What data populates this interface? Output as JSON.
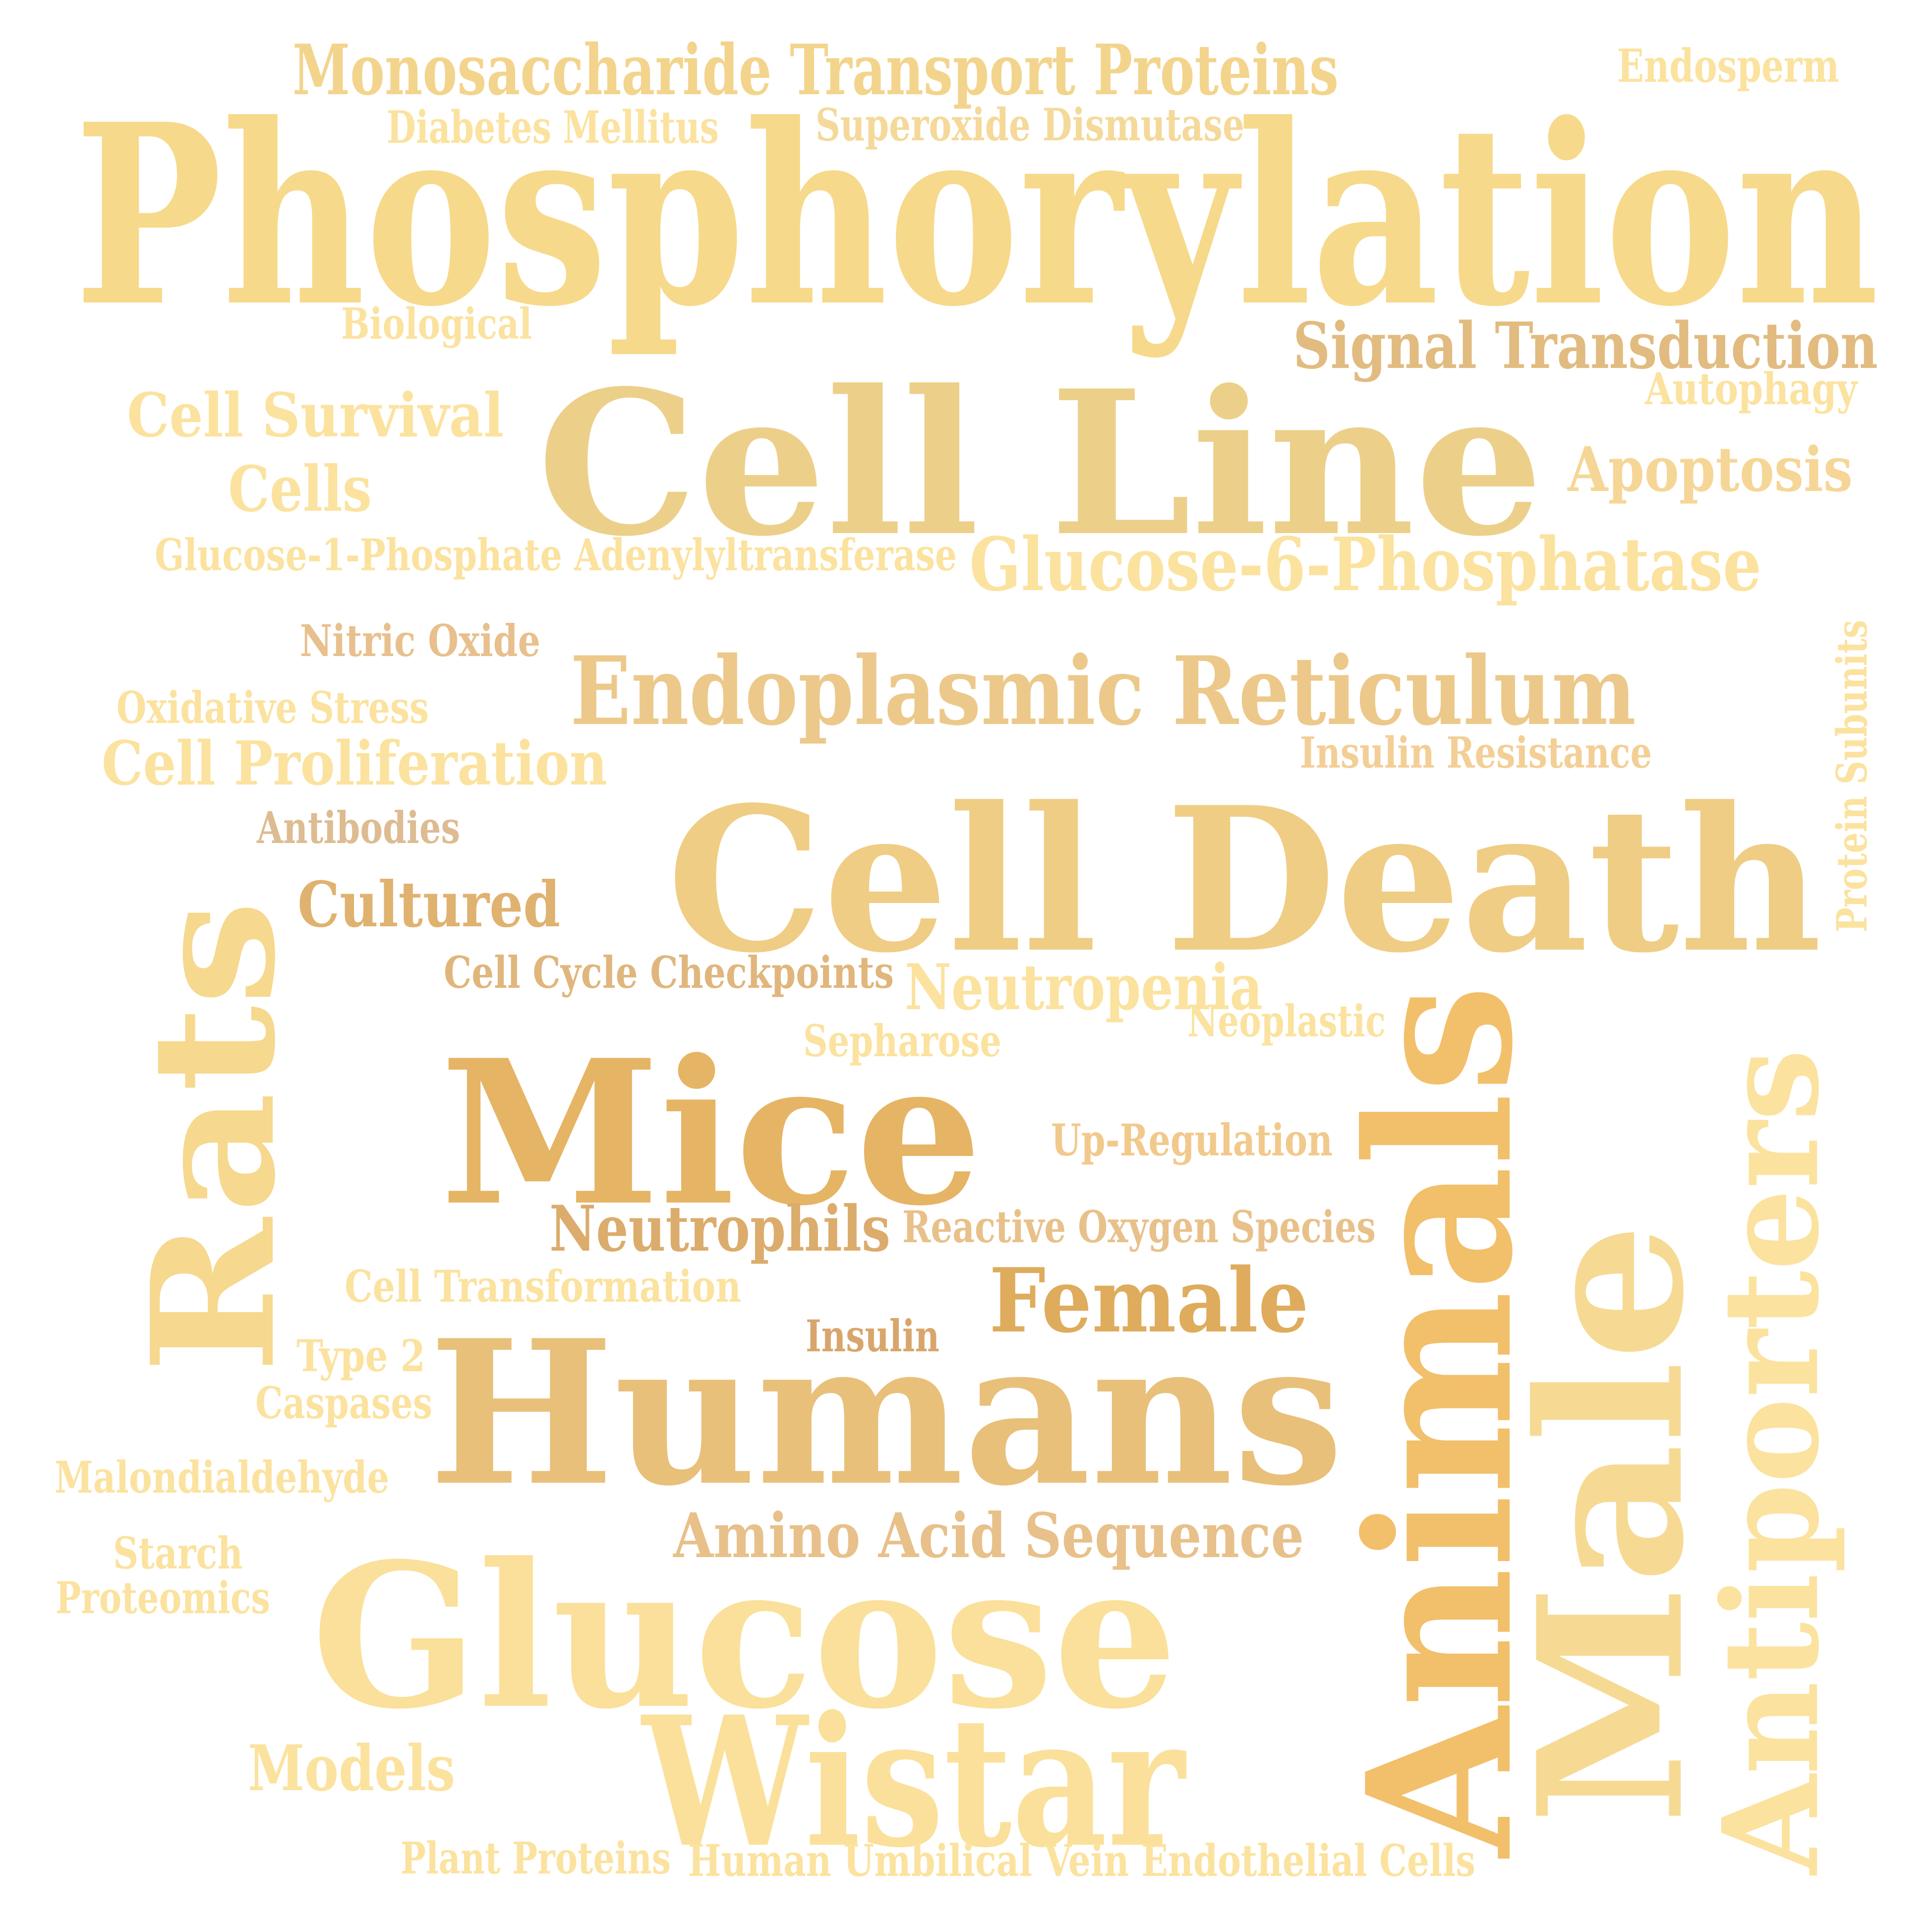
{
  "word_cloud": {
    "words": [
      {
        "id": "monosaccharide-transport-proteins",
        "text": "Monosaccharide Transport Proteins",
        "color": "#f3d48c",
        "orientation": "horizontal"
      },
      {
        "id": "endosperm",
        "text": "Endosperm",
        "color": "#fbe29e",
        "orientation": "horizontal"
      },
      {
        "id": "diabetes-mellitus",
        "text": "Diabetes Mellitus",
        "color": "#fbe29e",
        "orientation": "horizontal"
      },
      {
        "id": "superoxide-dismutase",
        "text": "Superoxide Dismutase",
        "color": "#f5d99a",
        "orientation": "horizontal"
      },
      {
        "id": "phosphorylation",
        "text": "Phosphorylation",
        "color": "#f7d98b",
        "orientation": "horizontal"
      },
      {
        "id": "biological",
        "text": "Biological",
        "color": "#fbe29e",
        "orientation": "horizontal"
      },
      {
        "id": "signal-transduction",
        "text": "Signal Transduction",
        "color": "#e2bb80",
        "orientation": "horizontal"
      },
      {
        "id": "cell-line",
        "text": "Cell Line",
        "color": "#ecd08a",
        "orientation": "horizontal"
      },
      {
        "id": "cell-survival",
        "text": "Cell Survival",
        "color": "#fbe29e",
        "orientation": "horizontal"
      },
      {
        "id": "autophagy",
        "text": "Autophagy",
        "color": "#fbe29e",
        "orientation": "horizontal"
      },
      {
        "id": "apoptosis",
        "text": "Apoptosis",
        "color": "#f6d696",
        "orientation": "horizontal"
      },
      {
        "id": "cells",
        "text": "Cells",
        "color": "#fbe29e",
        "orientation": "horizontal"
      },
      {
        "id": "glucose-1-phosphate-adenylyltransferase",
        "text": "Glucose-1-Phosphate Adenylyltransferase",
        "color": "#fbe29e",
        "orientation": "horizontal"
      },
      {
        "id": "glucose-6-phosphatase",
        "text": "Glucose-6-Phosphatase",
        "color": "#fbe29e",
        "orientation": "horizontal"
      },
      {
        "id": "nitric-oxide",
        "text": "Nitric Oxide",
        "color": "#e8c08e",
        "orientation": "horizontal"
      },
      {
        "id": "endoplasmic-reticulum",
        "text": "Endoplasmic Reticulum",
        "color": "#ecc98a",
        "orientation": "horizontal"
      },
      {
        "id": "oxidative-stress",
        "text": "Oxidative Stress",
        "color": "#fbe29e",
        "orientation": "horizontal"
      },
      {
        "id": "protein-subunits",
        "text": "Protein Subunits",
        "color": "#fbe29e",
        "orientation": "vertical"
      },
      {
        "id": "insulin-resistance",
        "text": "Insulin Resistance",
        "color": "#f3cf96",
        "orientation": "horizontal"
      },
      {
        "id": "cell-proliferation",
        "text": "Cell Proliferation",
        "color": "#fbe29e",
        "orientation": "horizontal"
      },
      {
        "id": "cell-death",
        "text": "Cell Death",
        "color": "#efcd84",
        "orientation": "horizontal"
      },
      {
        "id": "antibodies",
        "text": "Antibodies",
        "color": "#ddbc92",
        "orientation": "horizontal"
      },
      {
        "id": "rats",
        "text": "Rats",
        "color": "#f6d88e",
        "orientation": "vertical"
      },
      {
        "id": "cultured",
        "text": "Cultured",
        "color": "#e0b270",
        "orientation": "horizontal"
      },
      {
        "id": "cell-cycle-checkpoints",
        "text": "Cell Cycle Checkpoints",
        "color": "#e0b67c",
        "orientation": "horizontal"
      },
      {
        "id": "neutropenia",
        "text": "Neutropenia",
        "color": "#fbe29e",
        "orientation": "horizontal"
      },
      {
        "id": "neoplastic",
        "text": "Neoplastic",
        "color": "#fbe29e",
        "orientation": "horizontal"
      },
      {
        "id": "sepharose",
        "text": "Sepharose",
        "color": "#fbe29e",
        "orientation": "horizontal"
      },
      {
        "id": "mice",
        "text": "Mice",
        "color": "#e5b465",
        "orientation": "horizontal"
      },
      {
        "id": "up-regulation",
        "text": "Up-Regulation",
        "color": "#f2c98c",
        "orientation": "horizontal"
      },
      {
        "id": "animals",
        "text": "Animals",
        "color": "#f2bf6a",
        "orientation": "vertical"
      },
      {
        "id": "antiporters",
        "text": "Antiporters",
        "color": "#fbe29e",
        "orientation": "vertical"
      },
      {
        "id": "neutrophils",
        "text": "Neutrophils",
        "color": "#dcac6c",
        "orientation": "horizontal"
      },
      {
        "id": "reactive-oxygen-species",
        "text": "Reactive Oxygen Species",
        "color": "#e8c18a",
        "orientation": "horizontal"
      },
      {
        "id": "male",
        "text": "Male",
        "color": "#f6da94",
        "orientation": "vertical"
      },
      {
        "id": "cell-transformation",
        "text": "Cell Transformation",
        "color": "#fbe29e",
        "orientation": "horizontal"
      },
      {
        "id": "female",
        "text": "Female",
        "color": "#deac5c",
        "orientation": "horizontal"
      },
      {
        "id": "insulin",
        "text": "Insulin",
        "color": "#d8a66c",
        "orientation": "horizontal"
      },
      {
        "id": "type-2",
        "text": "Type 2",
        "color": "#fbe29e",
        "orientation": "horizontal"
      },
      {
        "id": "humans",
        "text": "Humans",
        "color": "#e8c07a",
        "orientation": "horizontal"
      },
      {
        "id": "caspases",
        "text": "Caspases",
        "color": "#fbe29e",
        "orientation": "horizontal"
      },
      {
        "id": "malondialdehyde",
        "text": "Malondialdehyde",
        "color": "#fbe29e",
        "orientation": "horizontal"
      },
      {
        "id": "amino-acid-sequence",
        "text": "Amino Acid Sequence",
        "color": "#e8c08a",
        "orientation": "horizontal"
      },
      {
        "id": "starch",
        "text": "Starch",
        "color": "#fbe29e",
        "orientation": "horizontal"
      },
      {
        "id": "proteomics",
        "text": "Proteomics",
        "color": "#fbe29e",
        "orientation": "horizontal"
      },
      {
        "id": "glucose",
        "text": "Glucose",
        "color": "#fae09a",
        "orientation": "horizontal"
      },
      {
        "id": "wistar",
        "text": "Wistar",
        "color": "#fae09a",
        "orientation": "horizontal"
      },
      {
        "id": "models",
        "text": "Models",
        "color": "#fbe29e",
        "orientation": "horizontal"
      },
      {
        "id": "plant-proteins",
        "text": "Plant Proteins",
        "color": "#fbe29e",
        "orientation": "horizontal"
      },
      {
        "id": "human-umbilical-vein-endothelial-cells",
        "text": "Human Umbilical Vein Endothelial Cells",
        "color": "#fbe29e",
        "orientation": "horizontal"
      }
    ]
  }
}
